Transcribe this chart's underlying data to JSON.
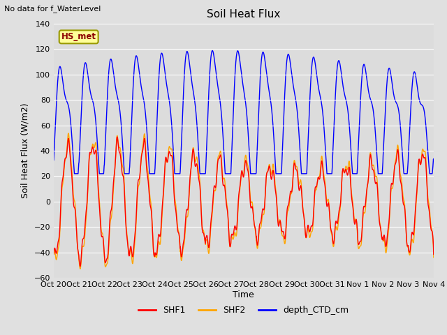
{
  "title": "Soil Heat Flux",
  "ylabel": "Soil Heat Flux (W/m2)",
  "xlabel": "Time",
  "top_left_text": "No data for f_WaterLevel",
  "annotation_box": "HS_met",
  "ylim": [
    -60,
    140
  ],
  "yticks": [
    -60,
    -40,
    -20,
    0,
    20,
    40,
    60,
    80,
    100,
    120,
    140
  ],
  "fig_bg_color": "#e0e0e0",
  "plot_bg_color": "#dcdcdc",
  "shf1_color": "#ff0000",
  "shf2_color": "#ffa500",
  "depth_color": "#0000ff",
  "line_width": 1.0,
  "x_tick_labels": [
    "Oct 20",
    "Oct 21",
    "Oct 22",
    "Oct 23",
    "Oct 24",
    "Oct 25",
    "Oct 26",
    "Oct 27",
    "Oct 28",
    "Oct 29",
    "Oct 30",
    "Oct 31",
    "Nov 1",
    "Nov 2",
    "Nov 3",
    "Nov 4"
  ],
  "num_days": 15,
  "grid_color": "#ffffff"
}
